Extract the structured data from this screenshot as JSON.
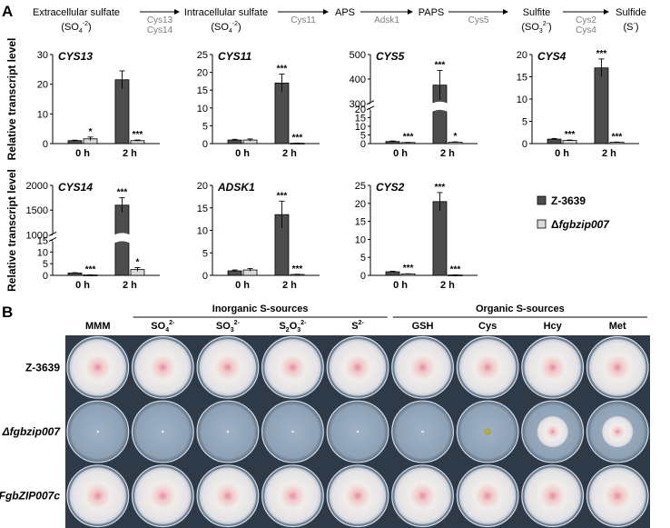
{
  "panel_a_label": "A",
  "panel_b_label": "B",
  "pathway": {
    "steps": [
      {
        "line1": "Extracellular sulfate",
        "line2": "(SO",
        "sub": "4",
        "sup": "-2",
        "tail": ")"
      },
      {
        "line1": "Intracellular sulfate",
        "line2": "(SO",
        "sub": "4",
        "sup": "-2",
        "tail": ")"
      },
      {
        "line1": "APS",
        "line2": "",
        "sub": "",
        "sup": "",
        "tail": ""
      },
      {
        "line1": "PAPS",
        "line2": "",
        "sub": "",
        "sup": "",
        "tail": ""
      },
      {
        "line1": "Sulfite",
        "line2": "(SO",
        "sub": "3",
        "sup": "2-",
        "tail": ")"
      },
      {
        "line1": "Sulfide",
        "line2": "(S",
        "sub": "",
        "sup": "-",
        "tail": ")"
      }
    ],
    "enzymes": [
      [
        "Cys13",
        "Cys14"
      ],
      [
        "Cys11"
      ],
      [
        "Adsk1"
      ],
      [
        "Cys5"
      ],
      [
        "Cys2",
        "Cys4"
      ]
    ]
  },
  "ylabel": "Relative transcript level",
  "legend": [
    {
      "name": "Z-3639",
      "color": "#4d4d4d"
    },
    {
      "name": "Δfgbzip007",
      "color": "#d9d9d9"
    }
  ],
  "chart_data": [
    {
      "type": "bar",
      "gene": "CYS13",
      "categories": [
        "0 h",
        "2 h"
      ],
      "ylim": [
        0,
        30
      ],
      "yticks": [
        0,
        10,
        20,
        30
      ],
      "series": [
        {
          "name": "Z-3639",
          "values": [
            1.0,
            21.5
          ],
          "errors": [
            0.15,
            3.0
          ]
        },
        {
          "name": "Δfgbzip007",
          "values": [
            1.6,
            1.0
          ],
          "errors": [
            0.6,
            0.2
          ]
        }
      ],
      "stars": [
        [
          "",
          ""
        ],
        [
          "*",
          "***"
        ]
      ]
    },
    {
      "type": "bar",
      "gene": "CYS11",
      "categories": [
        "0 h",
        "2 h"
      ],
      "ylim": [
        0,
        25
      ],
      "yticks": [
        0,
        5,
        10,
        15,
        20,
        25
      ],
      "series": [
        {
          "name": "Z-3639",
          "values": [
            1.0,
            17.0
          ],
          "errors": [
            0.2,
            2.5
          ]
        },
        {
          "name": "Δfgbzip007",
          "values": [
            1.0,
            0.1
          ],
          "errors": [
            0.3,
            0.05
          ]
        }
      ],
      "stars": [
        [
          "",
          "***"
        ],
        [
          "",
          "***"
        ]
      ]
    },
    {
      "type": "bar",
      "gene": "CYS5",
      "categories": [
        "0 h",
        "2 h"
      ],
      "ylim": [
        0,
        500
      ],
      "yticks": [
        0,
        5,
        10,
        15,
        20,
        300,
        400,
        500
      ],
      "axis_break": true,
      "series": [
        {
          "name": "Z-3639",
          "values": [
            1.2,
            375
          ],
          "errors": [
            0.3,
            60
          ]
        },
        {
          "name": "Δfgbzip007",
          "values": [
            0.6,
            0.8
          ],
          "errors": [
            0.1,
            0.2
          ]
        }
      ],
      "stars": [
        [
          "",
          "***"
        ],
        [
          "***",
          "*"
        ]
      ]
    },
    {
      "type": "bar",
      "gene": "CYS4",
      "categories": [
        "0 h",
        "2 h"
      ],
      "ylim": [
        0,
        20
      ],
      "yticks": [
        0,
        5,
        10,
        15,
        20
      ],
      "series": [
        {
          "name": "Z-3639",
          "values": [
            1.0,
            17.0
          ],
          "errors": [
            0.15,
            2.0
          ]
        },
        {
          "name": "Δfgbzip007",
          "values": [
            0.7,
            0.3
          ],
          "errors": [
            0.1,
            0.05
          ]
        }
      ],
      "stars": [
        [
          "",
          "***"
        ],
        [
          "***",
          "***"
        ]
      ]
    },
    {
      "type": "bar",
      "gene": "CYS14",
      "categories": [
        "0 h",
        "2 h"
      ],
      "ylim": [
        0,
        2000
      ],
      "yticks": [
        0,
        5,
        10,
        15,
        1000,
        1500,
        2000
      ],
      "axis_break": true,
      "series": [
        {
          "name": "Z-3639",
          "values": [
            1.0,
            1600
          ],
          "errors": [
            0.15,
            150
          ]
        },
        {
          "name": "Δfgbzip007",
          "values": [
            0.2,
            2.5
          ],
          "errors": [
            0.05,
            0.8
          ]
        }
      ],
      "stars": [
        [
          "",
          "***"
        ],
        [
          "***",
          "*"
        ]
      ]
    },
    {
      "type": "bar",
      "gene": "ADSK1",
      "categories": [
        "0 h",
        "2 h"
      ],
      "ylim": [
        0,
        20
      ],
      "yticks": [
        0,
        5,
        10,
        15,
        20
      ],
      "series": [
        {
          "name": "Z-3639",
          "values": [
            1.0,
            13.5
          ],
          "errors": [
            0.2,
            3.0
          ]
        },
        {
          "name": "Δfgbzip007",
          "values": [
            1.2,
            0.2
          ],
          "errors": [
            0.3,
            0.05
          ]
        }
      ],
      "stars": [
        [
          "",
          "***"
        ],
        [
          "",
          "***"
        ]
      ]
    },
    {
      "type": "bar",
      "gene": "CYS2",
      "categories": [
        "0 h",
        "2 h"
      ],
      "ylim": [
        0,
        25
      ],
      "yticks": [
        0,
        5,
        10,
        15,
        20,
        25
      ],
      "series": [
        {
          "name": "Z-3639",
          "values": [
            1.0,
            20.5
          ],
          "errors": [
            0.15,
            2.5
          ]
        },
        {
          "name": "Δfgbzip007",
          "values": [
            0.4,
            0.1
          ],
          "errors": [
            0.05,
            0.03
          ]
        }
      ],
      "stars": [
        [
          "",
          "***"
        ],
        [
          "***",
          "***"
        ]
      ]
    }
  ],
  "plates": {
    "group_labels": [
      "Inorganic S-sources",
      "Organic S-sources"
    ],
    "columns": [
      {
        "base": "MMM",
        "sub": "",
        "sup": ""
      },
      {
        "base": "SO",
        "sub": "4",
        "sup": "2-"
      },
      {
        "base": "SO",
        "sub": "3",
        "sup": "2-"
      },
      {
        "base": "S",
        "sub": "2",
        "sup": "",
        "base2": "O",
        "sub2": "3",
        "sup2": "2-"
      },
      {
        "base": "S",
        "sub": "",
        "sup": "2-"
      },
      {
        "base": "GSH",
        "sub": "",
        "sup": ""
      },
      {
        "base": "Cys",
        "sub": "",
        "sup": ""
      },
      {
        "base": "Hcy",
        "sub": "",
        "sup": ""
      },
      {
        "base": "Met",
        "sub": "",
        "sup": ""
      }
    ],
    "rows": [
      {
        "label": "Z-3639",
        "italic": false
      },
      {
        "label": "Δfgbzip007",
        "italic": true
      },
      {
        "label": "FgbZIP007c",
        "italic": true
      }
    ],
    "growth": [
      [
        1,
        1,
        1,
        1,
        1,
        1,
        1,
        1,
        1
      ],
      [
        0,
        0,
        0,
        0,
        0,
        0,
        0.12,
        0.55,
        0.55
      ],
      [
        1,
        1,
        1,
        1,
        1,
        1,
        1,
        1,
        1
      ]
    ],
    "colors": {
      "agar": "#8fa1b5",
      "mycelium": "#f3efec",
      "pink": "#e58aa2",
      "yellow": "#c8b428"
    }
  }
}
